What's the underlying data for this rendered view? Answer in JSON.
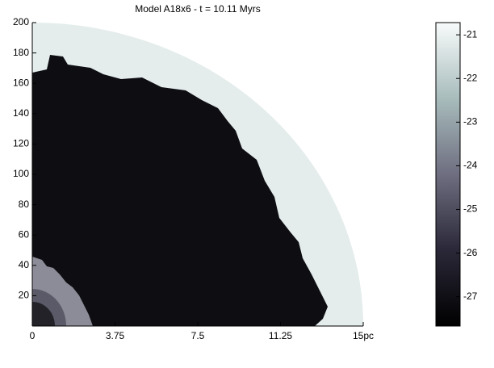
{
  "chart_data": {
    "type": "heatmap",
    "title": "Model A18x6 - t = 10.11 Myrs",
    "xlim": [
      0,
      15
    ],
    "xticks": [
      0,
      3.75,
      7.5,
      11.25,
      {
        "value": 15,
        "label": "15pc"
      }
    ],
    "ylim": [
      0,
      200
    ],
    "yticks": [
      20,
      40,
      60,
      80,
      100,
      120,
      140,
      160,
      180,
      200
    ],
    "colorbar": {
      "clim": [
        -27.67,
        -20.72
      ],
      "ticks": [
        -21,
        -22,
        -23,
        -24,
        -25,
        -26,
        -27
      ]
    }
  }
}
